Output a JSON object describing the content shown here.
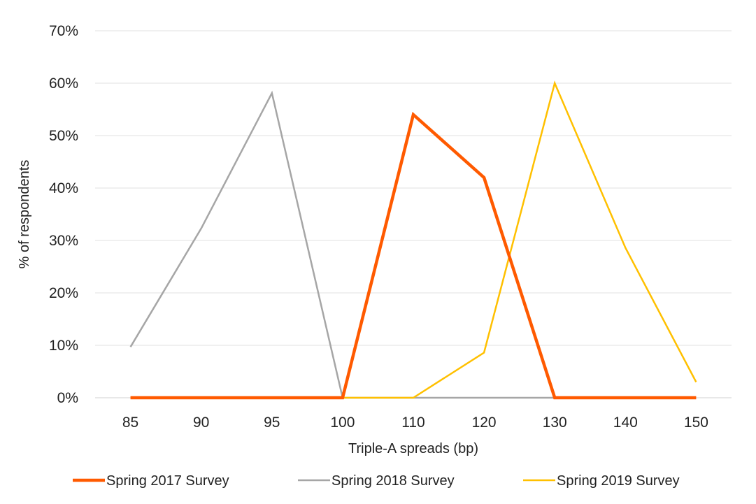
{
  "chart_data": {
    "type": "line",
    "xlabel": "Triple-A spreads (bp)",
    "ylabel": "% of respondents",
    "categories": [
      "85",
      "90",
      "95",
      "100",
      "110",
      "120",
      "130",
      "140",
      "150"
    ],
    "y_ticks": [
      "0%",
      "10%",
      "20%",
      "30%",
      "40%",
      "50%",
      "60%",
      "70%"
    ],
    "ylim": [
      0,
      70
    ],
    "y_unit": "%",
    "grid": "horizontal",
    "legend_position": "bottom",
    "series": [
      {
        "name": "Spring 2017 Survey",
        "color": "#FF5A00",
        "values": [
          0,
          0,
          0,
          0,
          54,
          42,
          0,
          0,
          0
        ]
      },
      {
        "name": "Spring 2018 Survey",
        "color": "#A6A6A6",
        "values": [
          9.7,
          32.3,
          58.1,
          0,
          0,
          0,
          0,
          0,
          0
        ]
      },
      {
        "name": "Spring 2019 Survey",
        "color": "#FFC000",
        "values": [
          0,
          0,
          0,
          0,
          0,
          8.6,
          60,
          28.6,
          3
        ]
      }
    ]
  }
}
